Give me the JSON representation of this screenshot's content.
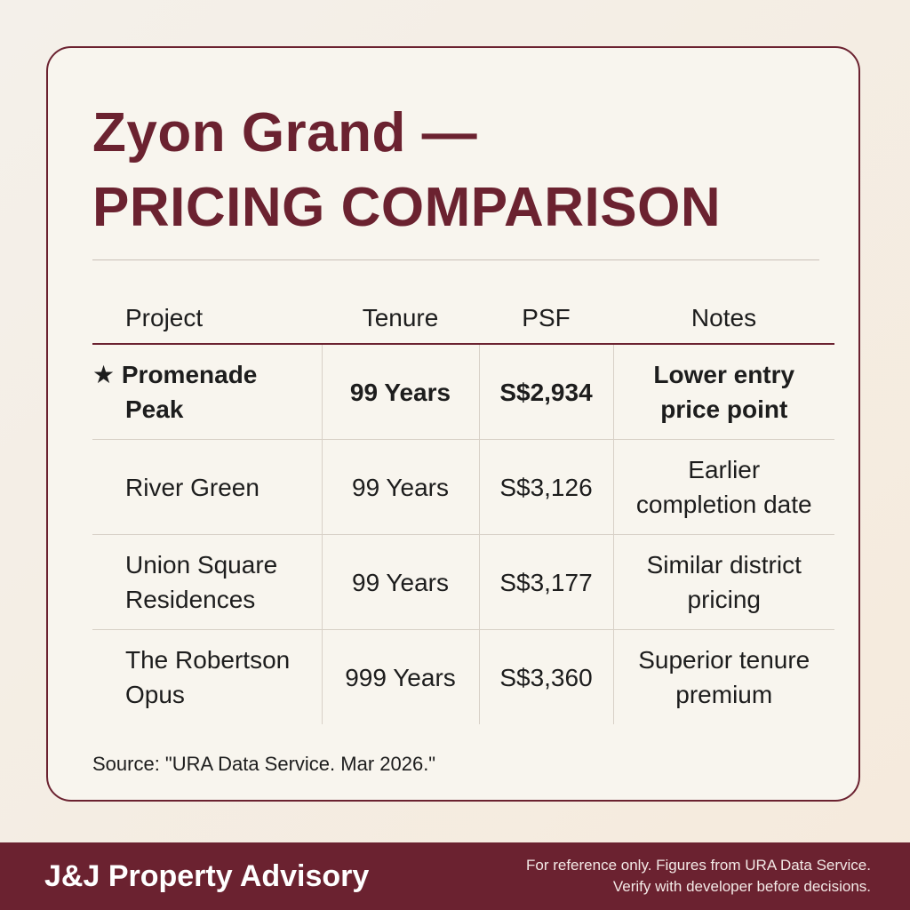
{
  "header": {
    "title_lines": [
      "Zyon Grand —",
      "PRICING COMPARISON"
    ]
  },
  "table": {
    "columns": [
      "Project",
      "Tenure",
      "PSF",
      "Notes"
    ],
    "rows": [
      {
        "highlight": true,
        "project": [
          "★ Promenade",
          "Peak"
        ],
        "tenure": "99 Years",
        "psf": "S$2,934",
        "notes": [
          "Lower entry",
          "price point"
        ]
      },
      {
        "highlight": false,
        "project": [
          "River Green"
        ],
        "tenure": "99 Years",
        "psf": "S$3,126",
        "notes": [
          "Earlier",
          "completion date"
        ]
      },
      {
        "highlight": false,
        "project": [
          "Union Square",
          "Residences"
        ],
        "tenure": "99 Years",
        "psf": "S$3,177",
        "notes": [
          "Similar district",
          "pricing"
        ]
      },
      {
        "highlight": false,
        "project": [
          "The Robertson",
          "Opus"
        ],
        "tenure": "999 Years",
        "psf": "S$3,360",
        "notes": [
          "Superior tenure",
          "premium"
        ]
      }
    ]
  },
  "source": "Source: \"URA Data Service. Mar 2026.\"",
  "footer": {
    "brand": "J&J Property Advisory",
    "note_lines": [
      "For reference only. Figures from URA Data Service.",
      "Verify with developer before decisions."
    ]
  }
}
